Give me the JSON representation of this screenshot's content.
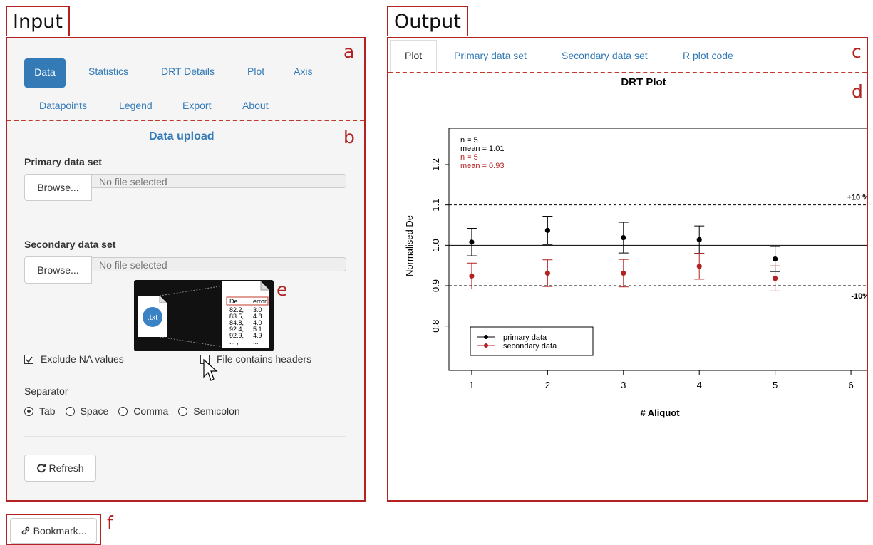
{
  "labels": {
    "input": "Input",
    "output": "Output",
    "a": "a",
    "b": "b",
    "c": "c",
    "d": "d",
    "e": "e",
    "f": "f"
  },
  "input_tabs": [
    "Data",
    "Statistics",
    "DRT Details",
    "Plot",
    "Axis",
    "Datapoints",
    "Legend",
    "Export",
    "About"
  ],
  "active_input_tab": "Data",
  "data_upload": {
    "title": "Data upload",
    "primary_label": "Primary data set",
    "secondary_label": "Secondary data set",
    "browse": "Browse...",
    "no_file": "No file selected",
    "exclude_na": "Exclude NA values",
    "exclude_na_checked": true,
    "headers": "File contains headers",
    "headers_checked": false,
    "separator_label": "Separator",
    "separators": [
      "Tab",
      "Space",
      "Comma",
      "Semicolon"
    ],
    "selected_separator": "Tab",
    "refresh": "Refresh"
  },
  "tooltip": {
    "file_label": ".txt",
    "col1": "De",
    "col2": "error",
    "rows": [
      [
        "82.2,",
        "3.0"
      ],
      [
        "83.5,",
        "4.8"
      ],
      [
        "84.8,",
        "4.0"
      ],
      [
        "92.4,",
        "5.1"
      ],
      [
        "92.9,",
        "4.9"
      ],
      [
        "... ,",
        "..."
      ]
    ]
  },
  "output_tabs": [
    "Plot",
    "Primary data set",
    "Secondary data set",
    "R plot code"
  ],
  "active_output_tab": "Plot",
  "bookmark": "Bookmark...",
  "colors": {
    "accent": "#337ab7",
    "frame": "#b22222",
    "primary_series": "#000000",
    "secondary_series": "#b22222"
  },
  "chart_data": {
    "type": "scatter",
    "title": "DRT Plot",
    "xlabel": "# Aliquot",
    "ylabel": "Normalised De",
    "xlim": [
      0.7,
      6.3
    ],
    "ylim": [
      0.69,
      1.29
    ],
    "xticks": [
      1,
      2,
      3,
      4,
      5,
      6
    ],
    "yticks": [
      0.8,
      0.9,
      1.0,
      1.1,
      1.2
    ],
    "ytick_labels": [
      "0.8",
      "0.9",
      "1.0",
      "1.1",
      "1.2"
    ],
    "reference_line": 1.0,
    "bands": [
      {
        "value": 1.1,
        "label": "+10 %"
      },
      {
        "value": 0.9,
        "label": "-10%"
      }
    ],
    "stats": [
      {
        "n": "n = 5",
        "mean": "mean = 1.01",
        "series": 0
      },
      {
        "n": "n = 5",
        "mean": "mean = 0.93",
        "series": 1
      }
    ],
    "legend_position": "bottom-left",
    "series": [
      {
        "name": "primary data",
        "x": [
          1,
          2,
          3,
          4,
          5
        ],
        "y": [
          1.008,
          1.037,
          1.019,
          1.014,
          0.966
        ],
        "err": [
          0.034,
          0.035,
          0.038,
          0.034,
          0.031
        ]
      },
      {
        "name": "secondary data",
        "x": [
          1,
          2,
          3,
          4,
          5
        ],
        "y": [
          0.924,
          0.931,
          0.931,
          0.948,
          0.918
        ],
        "err": [
          0.032,
          0.033,
          0.034,
          0.032,
          0.031
        ]
      }
    ]
  }
}
